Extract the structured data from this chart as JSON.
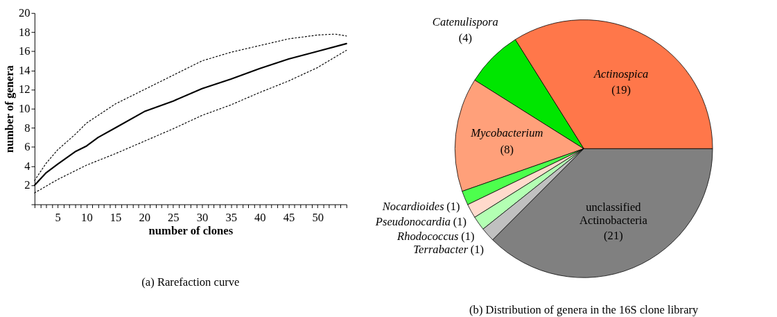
{
  "chart_data": [
    {
      "type": "line",
      "title": "(a)  Rarefaction curve",
      "xlabel": "number of clones",
      "ylabel": "number of genera",
      "xlim": [
        1,
        55
      ],
      "ylim": [
        0,
        20
      ],
      "xticks": [
        {
          "value": 1,
          "label": null
        },
        {
          "value": 2,
          "label": null
        },
        {
          "value": 3,
          "label": null
        },
        {
          "value": 4,
          "label": null
        },
        5,
        {
          "value": 6,
          "label": null
        },
        {
          "value": 7,
          "label": null
        },
        {
          "value": 8,
          "label": null
        },
        {
          "value": 9,
          "label": null
        },
        10,
        {
          "value": 11,
          "label": null
        },
        {
          "value": 12,
          "label": null
        },
        {
          "value": 13,
          "label": null
        },
        {
          "value": 14,
          "label": null
        },
        15,
        {
          "value": 16,
          "label": null
        },
        {
          "value": 17,
          "label": null
        },
        {
          "value": 18,
          "label": null
        },
        {
          "value": 19,
          "label": null
        },
        20,
        {
          "value": 21,
          "label": null
        },
        {
          "value": 22,
          "label": null
        },
        {
          "value": 23,
          "label": null
        },
        {
          "value": 24,
          "label": null
        },
        25,
        {
          "value": 26,
          "label": null
        },
        {
          "value": 27,
          "label": null
        },
        {
          "value": 28,
          "label": null
        },
        {
          "value": 29,
          "label": null
        },
        30,
        {
          "value": 31,
          "label": null
        },
        {
          "value": 32,
          "label": null
        },
        {
          "value": 33,
          "label": null
        },
        {
          "value": 34,
          "label": null
        },
        35,
        {
          "value": 36,
          "label": null
        },
        {
          "value": 37,
          "label": null
        },
        {
          "value": 38,
          "label": null
        },
        {
          "value": 39,
          "label": null
        },
        40,
        {
          "value": 41,
          "label": null
        },
        {
          "value": 42,
          "label": null
        },
        {
          "value": 43,
          "label": null
        },
        {
          "value": 44,
          "label": null
        },
        45,
        {
          "value": 46,
          "label": null
        },
        {
          "value": 47,
          "label": null
        },
        {
          "value": 48,
          "label": null
        },
        {
          "value": 49,
          "label": null
        },
        50,
        {
          "value": 51,
          "label": null
        },
        {
          "value": 52,
          "label": null
        },
        {
          "value": 53,
          "label": null
        },
        {
          "value": 54,
          "label": null
        },
        {
          "value": 55,
          "label": null
        }
      ],
      "yticks": [
        {
          "value": 0,
          "label": null
        },
        2,
        4,
        6,
        8,
        10,
        12,
        14,
        16,
        18,
        20
      ],
      "grid": false,
      "marker": "none",
      "series": [
        {
          "color": "#000000",
          "line_style": "solid",
          "x": [
            1,
            3,
            5,
            8,
            10,
            12,
            15,
            20,
            25,
            30,
            35,
            40,
            43,
            45,
            50,
            55
          ],
          "values": [
            2.0,
            3.3,
            4.2,
            5.5,
            6.1,
            7.0,
            8.0,
            9.7,
            10.8,
            12.1,
            13.1,
            14.2,
            14.8,
            15.2,
            16.0,
            16.8
          ]
        },
        {
          "color": "#000000",
          "line_style": "dotted",
          "x": [
            1,
            3,
            5,
            8,
            10,
            15,
            20,
            25,
            30,
            35,
            40,
            45,
            50,
            53,
            55
          ],
          "values": [
            2.5,
            4.3,
            5.7,
            7.3,
            8.5,
            10.5,
            12.0,
            13.5,
            15.0,
            15.9,
            16.6,
            17.3,
            17.7,
            17.8,
            17.6
          ]
        },
        {
          "color": "#000000",
          "line_style": "dotted",
          "x": [
            1,
            5,
            10,
            15,
            20,
            25,
            30,
            35,
            40,
            45,
            50,
            55
          ],
          "values": [
            1.2,
            2.6,
            4.1,
            5.3,
            6.6,
            7.9,
            9.3,
            10.4,
            11.7,
            12.9,
            14.3,
            16.1
          ]
        }
      ]
    },
    {
      "type": "pie",
      "title": "(b)  Distribution of genera in the 16S clone library",
      "categories": [
        "Actinospica",
        "Catenulispora",
        "Mycobacterium",
        "Nocardioides",
        "Pseudonocardia",
        "Rhodococcus",
        "Terrabacter",
        "unclassified Actinobacteria"
      ],
      "values": [
        19,
        4,
        8,
        1,
        1,
        1,
        1,
        21
      ],
      "colors": [
        "#ff774a",
        "#00e600",
        "#ffa07a",
        "#4dff4d",
        "#ffdacc",
        "#b3ffb3",
        "#c0c0c0",
        "#808080"
      ],
      "value_labels": [
        "(19)",
        "(4)",
        "(8)",
        "(1)",
        "(1)",
        "(1)",
        "(1)",
        "(21)"
      ]
    }
  ]
}
